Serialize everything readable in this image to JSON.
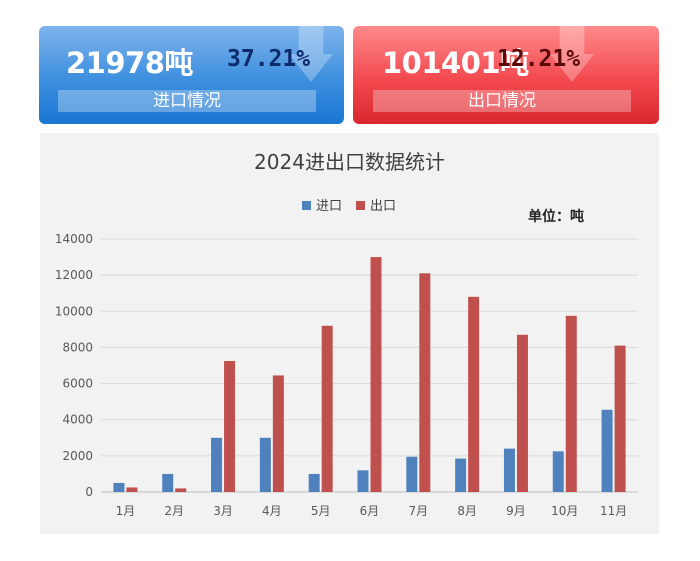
{
  "cards": {
    "import": {
      "amount": "21978吨",
      "percent": "37.21%",
      "label": "进口情况",
      "color": "#1976d2"
    },
    "export": {
      "amount": "101401吨",
      "percent": "12.21%",
      "label": "出口情况",
      "color": "#d9272e"
    }
  },
  "chart_data": {
    "type": "bar",
    "title": "2024进出口数据统计",
    "unit": "单位：吨",
    "categories": [
      "1月",
      "2月",
      "3月",
      "4月",
      "5月",
      "6月",
      "7月",
      "8月",
      "9月",
      "10月",
      "11月"
    ],
    "series": [
      {
        "name": "进口",
        "color": "#4f81bd",
        "values": [
          500,
          1000,
          3000,
          3000,
          1000,
          1200,
          1950,
          1850,
          2400,
          2250,
          4550
        ]
      },
      {
        "name": "出口",
        "color": "#c0504d",
        "values": [
          250,
          200,
          7250,
          6450,
          9200,
          13000,
          12100,
          10800,
          8700,
          9750,
          8100
        ]
      }
    ],
    "ylim": [
      0,
      14000
    ],
    "yticks": [
      0,
      2000,
      4000,
      6000,
      8000,
      10000,
      12000,
      14000
    ],
    "grid": true,
    "legend_position": "top"
  }
}
